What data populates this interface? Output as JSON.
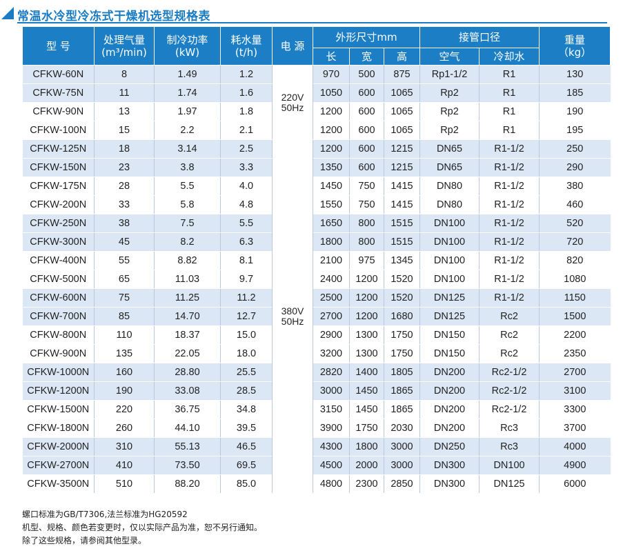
{
  "title": "常温水冷型冷冻式干燥机选型规格表",
  "colors": {
    "accent": "#1c7fc6",
    "row_shade": "#dbe7f4"
  },
  "headers": {
    "model": "型 号",
    "capacity": "处理气量",
    "capacity_unit": "(m³/min)",
    "cooling": "制冷功率",
    "cooling_unit": "(kW)",
    "water": "耗水量",
    "water_unit": "(t/h)",
    "power": "电 源",
    "dimensions": "外形尺寸mm",
    "length": "长",
    "width": "宽",
    "height": "高",
    "piping": "接管口径",
    "air": "空气",
    "cooling_water": "冷却水",
    "weight": "重量",
    "weight_unit": "（kg）"
  },
  "power_groups": [
    {
      "text_v": "220V",
      "text_hz": "50Hz",
      "rows": 4
    },
    {
      "text_v": "380V",
      "text_hz": "50Hz",
      "rows": 19
    }
  ],
  "rows": [
    {
      "model": "CFKW-60N",
      "capacity": "8",
      "cooling": "1.49",
      "water": "1.2",
      "l": "970",
      "w": "500",
      "h": "875",
      "air": "Rp1-1/2",
      "cw": "R1",
      "weight": "130",
      "shade": true
    },
    {
      "model": "CFKW-75N",
      "capacity": "11",
      "cooling": "1.74",
      "water": "1.6",
      "l": "1050",
      "w": "600",
      "h": "1065",
      "air": "Rp2",
      "cw": "R1",
      "weight": "185",
      "shade": true
    },
    {
      "model": "CFKW-90N",
      "capacity": "13",
      "cooling": "1.97",
      "water": "1.8",
      "l": "1200",
      "w": "600",
      "h": "1065",
      "air": "Rp2",
      "cw": "R1",
      "weight": "190",
      "shade": false
    },
    {
      "model": "CFKW-100N",
      "capacity": "15",
      "cooling": "2.2",
      "water": "2.1",
      "l": "1200",
      "w": "600",
      "h": "1065",
      "air": "Rp2",
      "cw": "R1",
      "weight": "195",
      "shade": false
    },
    {
      "model": "CFKW-125N",
      "capacity": "18",
      "cooling": "3.14",
      "water": "2.5",
      "l": "1200",
      "w": "600",
      "h": "1215",
      "air": "DN65",
      "cw": "R1-1/2",
      "weight": "250",
      "shade": true
    },
    {
      "model": "CFKW-150N",
      "capacity": "23",
      "cooling": "3.8",
      "water": "3.3",
      "l": "1350",
      "w": "600",
      "h": "1215",
      "air": "DN65",
      "cw": "R1-1/2",
      "weight": "290",
      "shade": true
    },
    {
      "model": "CFKW-175N",
      "capacity": "28",
      "cooling": "5.5",
      "water": "4.0",
      "l": "1450",
      "w": "750",
      "h": "1415",
      "air": "DN80",
      "cw": "R1-1/2",
      "weight": "380",
      "shade": false
    },
    {
      "model": "CFKW-200N",
      "capacity": "33",
      "cooling": "5.8",
      "water": "4.8",
      "l": "1550",
      "w": "750",
      "h": "1415",
      "air": "DN80",
      "cw": "R1-1/2",
      "weight": "460",
      "shade": false
    },
    {
      "model": "CFKW-250N",
      "capacity": "38",
      "cooling": "7.5",
      "water": "5.5",
      "l": "1650",
      "w": "800",
      "h": "1515",
      "air": "DN100",
      "cw": "R1-1/2",
      "weight": "520",
      "shade": true
    },
    {
      "model": "CFKW-300N",
      "capacity": "45",
      "cooling": "8.2",
      "water": "6.3",
      "l": "1800",
      "w": "800",
      "h": "1515",
      "air": "DN100",
      "cw": "R1-1/2",
      "weight": "720",
      "shade": true
    },
    {
      "model": "CFKW-400N",
      "capacity": "55",
      "cooling": "8.82",
      "water": "8.1",
      "l": "2100",
      "w": "975",
      "h": "1345",
      "air": "DN100",
      "cw": "R1-1/2",
      "weight": "820",
      "shade": false
    },
    {
      "model": "CFKW-500N",
      "capacity": "65",
      "cooling": "11.03",
      "water": "9.7",
      "l": "2400",
      "w": "1200",
      "h": "1520",
      "air": "DN100",
      "cw": "R1-1/2",
      "weight": "1080",
      "shade": false
    },
    {
      "model": "CFKW-600N",
      "capacity": "75",
      "cooling": "11.25",
      "water": "11.2",
      "l": "2500",
      "w": "1200",
      "h": "1520",
      "air": "DN125",
      "cw": "R1-1/2",
      "weight": "1150",
      "shade": true
    },
    {
      "model": "CFKW-700N",
      "capacity": "85",
      "cooling": "14.70",
      "water": "12.7",
      "l": "2700",
      "w": "1200",
      "h": "1680",
      "air": "DN125",
      "cw": "Rc2",
      "weight": "1500",
      "shade": true
    },
    {
      "model": "CFKW-800N",
      "capacity": "110",
      "cooling": "18.37",
      "water": "15.0",
      "l": "2900",
      "w": "1300",
      "h": "1750",
      "air": "DN150",
      "cw": "Rc2",
      "weight": "2200",
      "shade": false
    },
    {
      "model": "CFKW-900N",
      "capacity": "135",
      "cooling": "22.05",
      "water": "18.0",
      "l": "3200",
      "w": "1300",
      "h": "1750",
      "air": "DN150",
      "cw": "Rc2",
      "weight": "2350",
      "shade": false
    },
    {
      "model": "CFKW-1000N",
      "capacity": "160",
      "cooling": "28.80",
      "water": "25.5",
      "l": "2820",
      "w": "1400",
      "h": "1805",
      "air": "DN200",
      "cw": "Rc2-1/2",
      "weight": "2700",
      "shade": true
    },
    {
      "model": "CFKW-1200N",
      "capacity": "190",
      "cooling": "33.08",
      "water": "28.5",
      "l": "3000",
      "w": "1450",
      "h": "1865",
      "air": "DN200",
      "cw": "Rc2-1/2",
      "weight": "3100",
      "shade": true
    },
    {
      "model": "CFKW-1500N",
      "capacity": "220",
      "cooling": "36.75",
      "water": "34.8",
      "l": "3150",
      "w": "1450",
      "h": "1865",
      "air": "DN200",
      "cw": "Rc2-1/2",
      "weight": "3300",
      "shade": false
    },
    {
      "model": "CFKW-1800N",
      "capacity": "260",
      "cooling": "44.10",
      "water": "39.5",
      "l": "3900",
      "w": "1750",
      "h": "2030",
      "air": "DN200",
      "cw": "Rc3",
      "weight": "3700",
      "shade": false
    },
    {
      "model": "CFKW-2000N",
      "capacity": "310",
      "cooling": "55.13",
      "water": "46.5",
      "l": "4300",
      "w": "1800",
      "h": "3000",
      "air": "DN250",
      "cw": "Rc3",
      "weight": "4000",
      "shade": true
    },
    {
      "model": "CFKW-2700N",
      "capacity": "410",
      "cooling": "73.50",
      "water": "69.5",
      "l": "4500",
      "w": "2000",
      "h": "3000",
      "air": "DN300",
      "cw": "DN100",
      "weight": "4900",
      "shade": true
    },
    {
      "model": "CFKW-3500N",
      "capacity": "510",
      "cooling": "88.20",
      "water": "85.0",
      "l": "4800",
      "w": "2300",
      "h": "2850",
      "air": "DN300",
      "cw": "DN125",
      "weight": "6000",
      "shade": false
    }
  ],
  "notes": [
    "螺口标准为GB/T7306,法兰标准为HG20592",
    "机型、规格、颜色若变更时，仅以实际产品为准，恕不另行通知。",
    "除了这些规格，请参阅其他型录。"
  ]
}
